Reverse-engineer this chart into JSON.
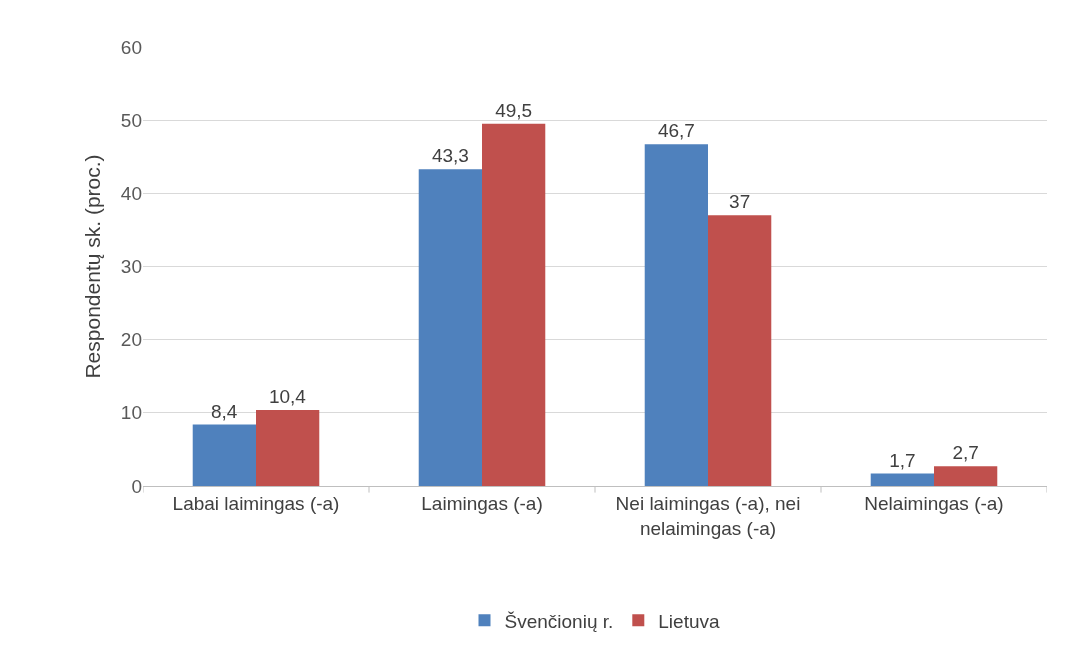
{
  "chart_data": {
    "type": "bar",
    "ylabel": "Respondentų sk. (proc.)",
    "categories": [
      "Labai laimingas (-a)",
      "Laimingas (-a)",
      "Nei laimingas (-a), nei nelaimingas (-a)",
      "Nelaimingas (-a)"
    ],
    "series": [
      {
        "name": "Švenčionių r.",
        "color": "#4f81bd",
        "values": [
          8.4,
          43.3,
          46.7,
          1.7
        ],
        "value_labels": [
          "8,4",
          "43,3",
          "46,7",
          "1,7"
        ]
      },
      {
        "name": "Lietuva",
        "color": "#c0504d",
        "values": [
          10.4,
          49.5,
          37,
          2.7
        ],
        "value_labels": [
          "10,4",
          "49,5",
          "37",
          "2,7"
        ]
      }
    ],
    "ylim": [
      0,
      60
    ],
    "yticks": [
      0,
      10,
      20,
      30,
      40,
      50,
      60
    ],
    "grid": "y",
    "legend": "bottom"
  }
}
